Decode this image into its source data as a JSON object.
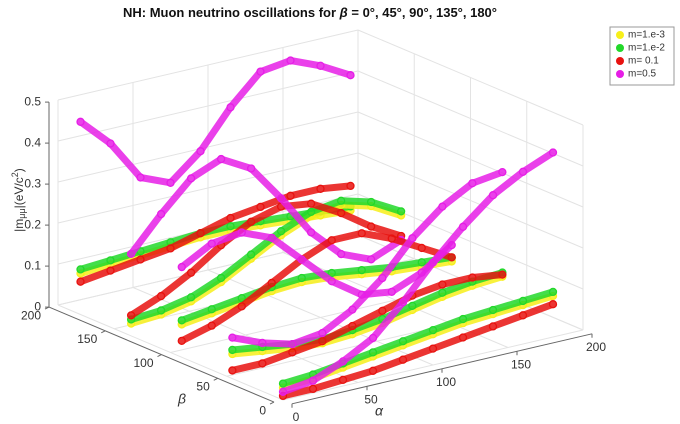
{
  "chart_data": {
    "type": "scatter3d",
    "title_prefix": "NH: Muon neutrino oscillations for ",
    "title_symbol": "β",
    "title_suffix": " = 0°, 45°, 90°, 135°, 180°",
    "x_label": "α",
    "y_label": "β",
    "z_label": [
      "|m",
      "μμ",
      "|(eV/c",
      "2",
      ")"
    ],
    "xlim": [
      0,
      200
    ],
    "xticks": [
      0,
      50,
      100,
      150,
      200
    ],
    "ylim": [
      0,
      200
    ],
    "yticks": [
      0,
      50,
      100,
      150,
      200
    ],
    "zlim": [
      0,
      0.5
    ],
    "zticks": [
      0,
      0.1,
      0.2,
      0.3,
      0.4,
      0.5
    ],
    "grid": true,
    "legend": "upper right",
    "alpha": [
      0,
      20,
      40,
      60,
      80,
      100,
      120,
      140,
      160,
      180
    ],
    "betas": [
      0,
      45,
      90,
      135,
      180
    ],
    "series": [
      {
        "name": "m=1.e-3",
        "color": "#f7ef1a",
        "values": [
          [
            0.03,
            0.035,
            0.045,
            0.055,
            0.065,
            0.075,
            0.085,
            0.09,
            0.095,
            0.1
          ],
          [
            0.06,
            0.05,
            0.04,
            0.035,
            0.04,
            0.05,
            0.065,
            0.08,
            0.09,
            0.095
          ],
          [
            0.08,
            0.09,
            0.1,
            0.11,
            0.115,
            0.11,
            0.1,
            0.09,
            0.085,
            0.08
          ],
          [
            0.03,
            0.035,
            0.05,
            0.08,
            0.12,
            0.16,
            0.19,
            0.2,
            0.18,
            0.14
          ],
          [
            0.1,
            0.105,
            0.11,
            0.115,
            0.12,
            0.12,
            0.115,
            0.11,
            0.105,
            0.1
          ]
        ]
      },
      {
        "name": "m=1.e-2",
        "color": "#22d82a",
        "values": [
          [
            0.04,
            0.045,
            0.055,
            0.065,
            0.075,
            0.085,
            0.095,
            0.1,
            0.105,
            0.11
          ],
          [
            0.07,
            0.06,
            0.05,
            0.045,
            0.05,
            0.06,
            0.075,
            0.09,
            0.1,
            0.105
          ],
          [
            0.09,
            0.1,
            0.11,
            0.12,
            0.125,
            0.12,
            0.11,
            0.1,
            0.095,
            0.09
          ],
          [
            0.04,
            0.045,
            0.06,
            0.09,
            0.13,
            0.17,
            0.2,
            0.21,
            0.19,
            0.15
          ],
          [
            0.11,
            0.115,
            0.12,
            0.125,
            0.13,
            0.13,
            0.125,
            0.12,
            0.115,
            0.11
          ]
        ]
      },
      {
        "name": "m= 0.1",
        "color": "#e8120f",
        "values": [
          [
            0.01,
            0.01,
            0.015,
            0.02,
            0.03,
            0.04,
            0.05,
            0.06,
            0.07,
            0.08
          ],
          [
            0.02,
            0.02,
            0.03,
            0.04,
            0.06,
            0.08,
            0.1,
            0.11,
            0.11,
            0.1
          ],
          [
            0.04,
            0.06,
            0.09,
            0.13,
            0.17,
            0.2,
            0.2,
            0.17,
            0.13,
            0.09
          ],
          [
            0.05,
            0.08,
            0.12,
            0.17,
            0.21,
            0.23,
            0.22,
            0.18,
            0.13,
            0.09
          ],
          [
            0.08,
            0.09,
            0.1,
            0.11,
            0.13,
            0.15,
            0.16,
            0.17,
            0.17,
            0.16
          ]
        ]
      },
      {
        "name": "m=0.5",
        "color": "#e61ee6",
        "values": [
          [
            0.02,
            0.03,
            0.06,
            0.1,
            0.17,
            0.25,
            0.32,
            0.38,
            0.42,
            0.45
          ],
          [
            0.1,
            0.07,
            0.05,
            0.06,
            0.1,
            0.16,
            0.24,
            0.3,
            0.34,
            0.35
          ],
          [
            0.22,
            0.26,
            0.27,
            0.24,
            0.17,
            0.1,
            0.05,
            0.04,
            0.07,
            0.12
          ],
          [
            0.2,
            0.28,
            0.35,
            0.38,
            0.34,
            0.25,
            0.15,
            0.08,
            0.05,
            0.08
          ],
          [
            0.47,
            0.4,
            0.3,
            0.27,
            0.33,
            0.42,
            0.49,
            0.5,
            0.47,
            0.43
          ]
        ]
      }
    ]
  }
}
